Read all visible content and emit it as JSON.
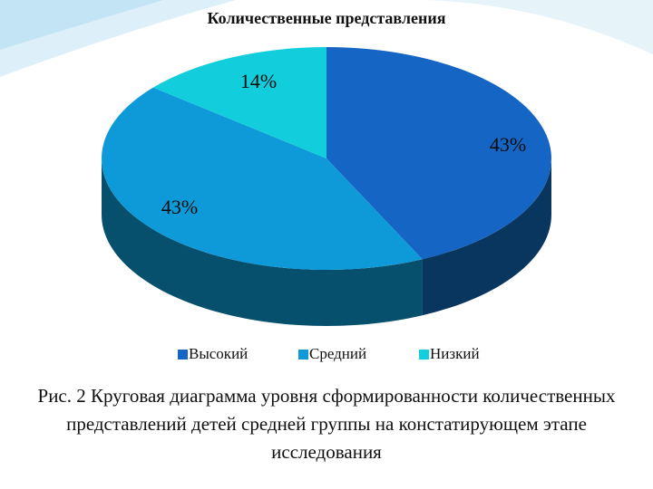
{
  "chart_data": {
    "type": "pie",
    "title": "Количественные представления",
    "categories": [
      "Высокий",
      "Средний",
      "Низкий"
    ],
    "values": [
      43,
      43,
      14
    ],
    "labels": [
      "43%",
      "43%",
      "14%"
    ],
    "colors": [
      "#1565C4",
      "#0E9AD8",
      "#12CEDC"
    ],
    "side_colors": [
      "#08365E",
      "#06506E",
      "#0A8A9A"
    ],
    "legend_position": "bottom",
    "style": "3d"
  },
  "caption": "Рис. 2 Круговая диаграмма уровня сформированности количественных представлений детей средней группы на констатирующем этапе исследования"
}
